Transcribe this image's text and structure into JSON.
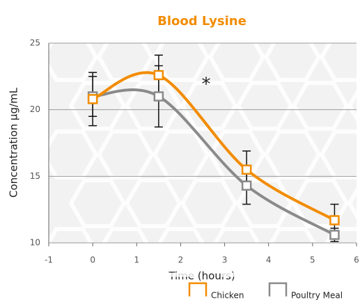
{
  "chart_data": {
    "type": "line",
    "title": "Blood Lysine",
    "xlabel": "Time (hours)",
    "ylabel": "Concentration µg/mL",
    "annotation": "*",
    "xlim": [
      -1,
      6
    ],
    "xticks": [
      -1,
      0,
      1,
      2,
      3,
      4,
      5,
      6
    ],
    "ylim": [
      10,
      25
    ],
    "yticks": [
      10,
      15,
      20,
      25
    ],
    "grid": true,
    "legend": "bottom",
    "series": [
      {
        "name": "Chicken",
        "color": "#f28c00",
        "x": [
          0,
          1.5,
          3.5,
          5.5
        ],
        "values": [
          20.8,
          22.6,
          15.5,
          11.7
        ],
        "errors": [
          2.0,
          1.5,
          1.4,
          1.2
        ]
      },
      {
        "name": "Poultry Meal",
        "color": "#8a8a8a",
        "x": [
          0,
          1.5,
          3.5,
          5.5
        ],
        "values": [
          21.0,
          21.0,
          14.3,
          10.6
        ],
        "errors": [
          1.5,
          2.3,
          1.4,
          0.5
        ]
      }
    ]
  }
}
